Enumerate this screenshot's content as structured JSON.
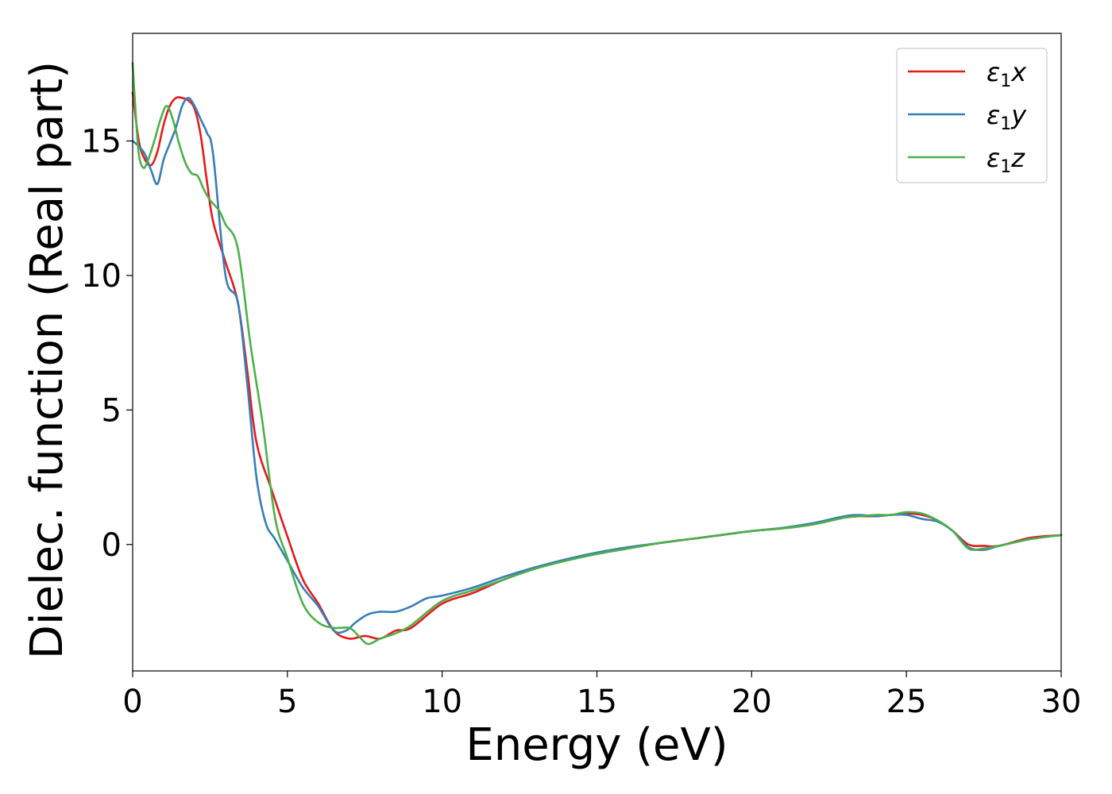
{
  "chart_data": {
    "type": "line",
    "xlabel": "Energy (eV)",
    "ylabel": "Dielec. function (Real part)",
    "xlim": [
      0,
      30
    ],
    "ylim": [
      -4.7,
      19.0
    ],
    "xticks": [
      0,
      5,
      10,
      15,
      20,
      25,
      30
    ],
    "xtick_labels": [
      "0",
      "5",
      "10",
      "15",
      "20",
      "25",
      "30"
    ],
    "yticks": [
      0,
      5,
      10,
      15
    ],
    "ytick_labels": [
      "0",
      "5",
      "10",
      "15"
    ],
    "grid": false,
    "legend_position": "top-right",
    "series": [
      {
        "name": "ε1x",
        "legend_main": "ε",
        "legend_sub": "1",
        "legend_suffix": "x",
        "color": "#e41a1c",
        "x": [
          0,
          0.2,
          0.4,
          0.6,
          0.8,
          1.0,
          1.2,
          1.4,
          1.6,
          1.8,
          2.0,
          2.2,
          2.4,
          2.6,
          3.0,
          3.4,
          3.7,
          4.0,
          4.5,
          5.0,
          5.5,
          6.0,
          6.5,
          7.0,
          7.5,
          8.0,
          8.5,
          9.0,
          10.0,
          11.0,
          12.0,
          13.0,
          14.0,
          15.0,
          16.0,
          17.0,
          18.0,
          19.0,
          20.0,
          21.0,
          22.0,
          23.0,
          23.5,
          24.0,
          24.5,
          25.0,
          25.5,
          26.0,
          26.5,
          27.0,
          27.5,
          28.0,
          29.0,
          30.0
        ],
        "y": [
          16.8,
          15.0,
          14.3,
          14.1,
          14.6,
          15.6,
          16.3,
          16.6,
          16.6,
          16.5,
          16.2,
          15.2,
          13.5,
          12.0,
          10.5,
          9.0,
          6.5,
          3.8,
          2.0,
          0.3,
          -1.3,
          -2.2,
          -3.2,
          -3.5,
          -3.4,
          -3.5,
          -3.2,
          -3.1,
          -2.2,
          -1.8,
          -1.3,
          -0.9,
          -0.6,
          -0.35,
          -0.15,
          0.05,
          0.2,
          0.35,
          0.5,
          0.6,
          0.75,
          1.0,
          1.05,
          1.05,
          1.1,
          1.15,
          1.1,
          0.9,
          0.5,
          0.0,
          -0.05,
          -0.05,
          0.25,
          0.35
        ]
      },
      {
        "name": "ε1y",
        "legend_main": "ε",
        "legend_sub": "1",
        "legend_suffix": "y",
        "color": "#377eb8",
        "x": [
          0,
          0.2,
          0.4,
          0.6,
          0.8,
          1.0,
          1.2,
          1.4,
          1.6,
          1.8,
          2.0,
          2.2,
          2.4,
          2.6,
          3.0,
          3.4,
          3.7,
          4.0,
          4.3,
          4.6,
          5.0,
          5.5,
          6.0,
          6.5,
          6.9,
          7.2,
          7.6,
          8.0,
          8.5,
          9.0,
          9.5,
          10.0,
          11.0,
          12.0,
          13.0,
          14.0,
          15.0,
          16.0,
          17.0,
          18.0,
          19.0,
          20.0,
          21.0,
          22.0,
          23.0,
          23.5,
          24.0,
          24.5,
          25.0,
          25.5,
          26.0,
          26.5,
          27.0,
          27.5,
          28.0,
          29.0,
          30.0
        ],
        "y": [
          15.0,
          14.8,
          14.5,
          13.9,
          13.4,
          14.3,
          14.9,
          15.5,
          16.3,
          16.6,
          16.3,
          15.8,
          15.3,
          14.5,
          10.0,
          9.0,
          6.0,
          2.5,
          0.8,
          0.2,
          -0.6,
          -1.6,
          -2.3,
          -3.2,
          -3.2,
          -2.9,
          -2.6,
          -2.5,
          -2.5,
          -2.3,
          -2.0,
          -1.9,
          -1.6,
          -1.2,
          -0.85,
          -0.55,
          -0.3,
          -0.1,
          0.05,
          0.2,
          0.35,
          0.5,
          0.62,
          0.8,
          1.05,
          1.1,
          1.05,
          1.1,
          1.1,
          0.95,
          0.85,
          0.5,
          -0.1,
          -0.2,
          -0.05,
          0.2,
          0.35
        ]
      },
      {
        "name": "ε1z",
        "legend_main": "ε",
        "legend_sub": "1",
        "legend_suffix": "z",
        "color": "#4daf4a",
        "x": [
          0,
          0.1,
          0.2,
          0.35,
          0.5,
          0.7,
          0.9,
          1.1,
          1.3,
          1.5,
          1.7,
          1.9,
          2.1,
          2.3,
          2.5,
          2.8,
          3.0,
          3.4,
          3.8,
          4.2,
          4.6,
          5.0,
          5.5,
          6.0,
          6.5,
          7.0,
          7.3,
          7.6,
          8.0,
          8.5,
          9.0,
          10.0,
          11.0,
          12.0,
          13.0,
          14.0,
          15.0,
          16.0,
          17.0,
          18.0,
          19.0,
          20.0,
          21.0,
          22.0,
          23.0,
          23.5,
          24.0,
          24.5,
          25.0,
          25.5,
          26.0,
          26.5,
          27.0,
          27.5,
          28.0,
          29.0,
          30.0
        ],
        "y": [
          17.9,
          16.0,
          14.5,
          14.0,
          14.3,
          15.0,
          15.8,
          16.3,
          15.8,
          14.9,
          14.2,
          13.8,
          13.7,
          13.2,
          12.8,
          12.4,
          11.9,
          11.0,
          7.5,
          4.5,
          1.0,
          -0.5,
          -2.2,
          -2.9,
          -3.1,
          -3.1,
          -3.4,
          -3.7,
          -3.5,
          -3.3,
          -3.0,
          -2.1,
          -1.7,
          -1.3,
          -0.9,
          -0.6,
          -0.35,
          -0.15,
          0.05,
          0.2,
          0.35,
          0.5,
          0.6,
          0.75,
          1.0,
          1.05,
          1.1,
          1.1,
          1.2,
          1.15,
          0.9,
          0.5,
          -0.15,
          -0.15,
          -0.05,
          0.2,
          0.35
        ]
      }
    ]
  }
}
